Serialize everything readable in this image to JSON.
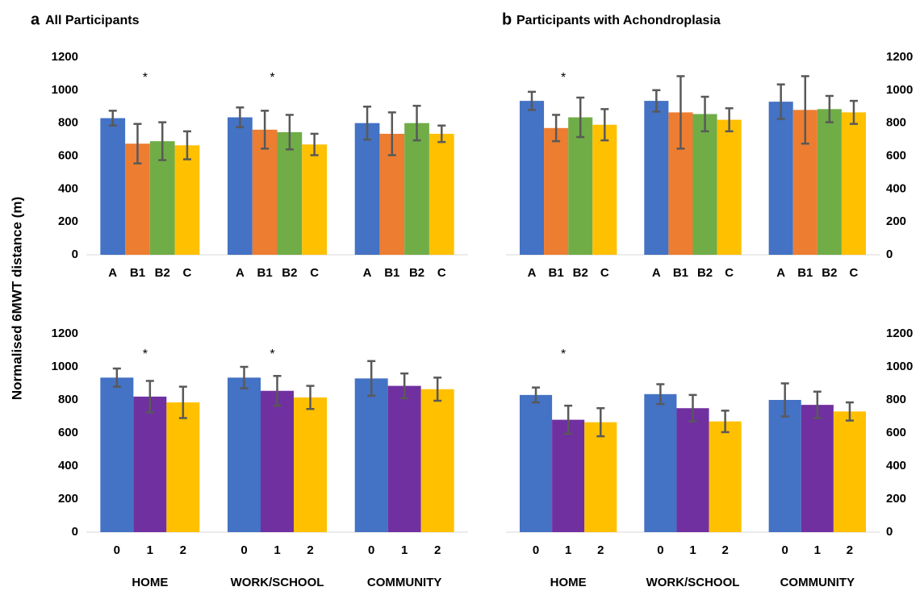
{
  "ylabel": "Normalised 6MWT distance (m)",
  "chart_data": [
    {
      "type": "bar",
      "panel": "a",
      "title": "All Participants",
      "yaxis": "left",
      "ylim": [
        0,
        1200
      ],
      "yticks": [
        0,
        200,
        400,
        600,
        800,
        1000,
        1200
      ],
      "significance": [
        "*",
        "*",
        null
      ],
      "series": [
        {
          "name": "A",
          "color": "#4472c4",
          "values": [
            830,
            835,
            800
          ],
          "errors": [
            45,
            60,
            100
          ]
        },
        {
          "name": "B1",
          "color": "#ed7d31",
          "values": [
            675,
            760,
            735
          ],
          "errors": [
            120,
            115,
            130
          ]
        },
        {
          "name": "B2",
          "color": "#70ad47",
          "values": [
            690,
            745,
            800
          ],
          "errors": [
            115,
            105,
            105
          ]
        },
        {
          "name": "C",
          "color": "#ffc000",
          "values": [
            665,
            670,
            735
          ],
          "errors": [
            85,
            65,
            50
          ]
        }
      ]
    },
    {
      "type": "bar",
      "panel": "b",
      "title": "Participants with Achondroplasia",
      "yaxis": "right",
      "ylim": [
        0,
        1200
      ],
      "yticks": [
        0,
        200,
        400,
        600,
        800,
        1000,
        1200
      ],
      "significance": [
        "*",
        null,
        null
      ],
      "series": [
        {
          "name": "A",
          "color": "#4472c4",
          "values": [
            935,
            935,
            930
          ],
          "errors": [
            55,
            65,
            105
          ]
        },
        {
          "name": "B1",
          "color": "#ed7d31",
          "values": [
            770,
            865,
            880
          ],
          "errors": [
            80,
            220,
            205
          ]
        },
        {
          "name": "B2",
          "color": "#70ad47",
          "values": [
            835,
            855,
            885
          ],
          "errors": [
            120,
            105,
            80
          ]
        },
        {
          "name": "C",
          "color": "#ffc000",
          "values": [
            790,
            820,
            865
          ],
          "errors": [
            95,
            70,
            70
          ]
        }
      ]
    },
    {
      "type": "bar",
      "yaxis": "left",
      "ylim": [
        0,
        1200
      ],
      "yticks": [
        0,
        200,
        400,
        600,
        800,
        1000,
        1200
      ],
      "groups": [
        "HOME",
        "WORK/SCHOOL",
        "COMMUNITY"
      ],
      "significance": [
        "*",
        "*",
        null
      ],
      "series": [
        {
          "name": "0",
          "color": "#4472c4",
          "values": [
            935,
            935,
            930
          ],
          "errors": [
            55,
            65,
            105
          ]
        },
        {
          "name": "1",
          "color": "#7030a0",
          "values": [
            820,
            855,
            885
          ],
          "errors": [
            95,
            90,
            75
          ]
        },
        {
          "name": "2",
          "color": "#ffc000",
          "values": [
            785,
            815,
            865
          ],
          "errors": [
            95,
            70,
            70
          ]
        }
      ]
    },
    {
      "type": "bar",
      "yaxis": "right",
      "ylim": [
        0,
        1200
      ],
      "yticks": [
        0,
        200,
        400,
        600,
        800,
        1000,
        1200
      ],
      "groups": [
        "HOME",
        "WORK/SCHOOL",
        "COMMUNITY"
      ],
      "significance": [
        "*",
        null,
        null
      ],
      "series": [
        {
          "name": "0",
          "color": "#4472c4",
          "values": [
            830,
            835,
            800
          ],
          "errors": [
            45,
            60,
            100
          ]
        },
        {
          "name": "1",
          "color": "#7030a0",
          "values": [
            680,
            750,
            770
          ],
          "errors": [
            85,
            80,
            80
          ]
        },
        {
          "name": "2",
          "color": "#ffc000",
          "values": [
            665,
            670,
            730
          ],
          "errors": [
            85,
            65,
            55
          ]
        }
      ]
    }
  ]
}
